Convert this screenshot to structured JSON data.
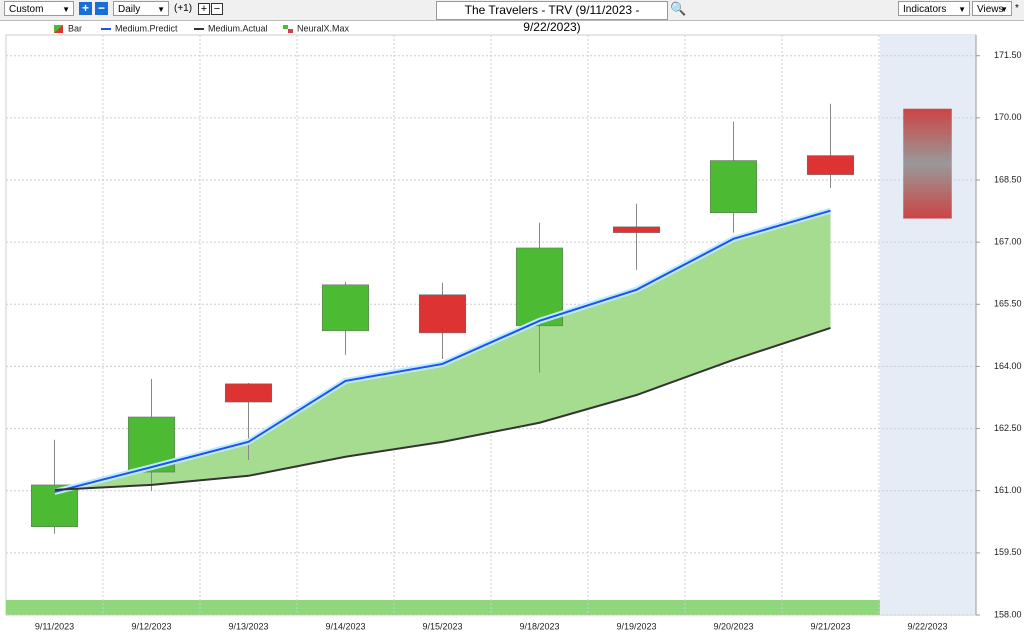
{
  "toolbar": {
    "period": "Custom",
    "interval": "Daily",
    "offset": "(+1)",
    "indicators": "Indicators",
    "views": "Views",
    "star": "*"
  },
  "chart_data": {
    "type": "candlestick",
    "title": "The Travelers - TRV (9/11/2023 - 9/22/2023)",
    "categories": [
      "9/11/2023",
      "9/12/2023",
      "9/13/2023",
      "9/14/2023",
      "9/15/2023",
      "9/18/2023",
      "9/19/2023",
      "9/20/2023",
      "9/21/2023",
      "9/22/2023"
    ],
    "series": [
      {
        "name": "Bar",
        "type": "candlestick",
        "up_color": "#4cbb33",
        "down_color": "#dd3333",
        "open": [
          160.13,
          161.45,
          163.58,
          164.86,
          165.73,
          164.98,
          167.37,
          167.71,
          169.09,
          null
        ],
        "high": [
          162.23,
          163.7,
          163.6,
          166.04,
          166.02,
          167.47,
          167.93,
          169.91,
          170.34,
          null
        ],
        "low": [
          159.96,
          161.0,
          161.74,
          164.28,
          164.18,
          163.85,
          166.33,
          167.23,
          168.31,
          null
        ],
        "close": [
          161.14,
          162.78,
          163.14,
          165.97,
          164.81,
          166.86,
          167.23,
          168.97,
          168.63,
          null
        ]
      },
      {
        "name": "Medium.Predict",
        "type": "line",
        "color": "#1a55ee",
        "values": [
          160.97,
          161.57,
          162.18,
          163.65,
          164.06,
          165.1,
          165.85,
          167.08,
          167.76,
          null
        ]
      },
      {
        "name": "Medium.Actual",
        "type": "line",
        "color": "#333333",
        "values": [
          161.02,
          161.14,
          161.36,
          161.82,
          162.18,
          162.64,
          163.31,
          164.16,
          164.93,
          null
        ]
      },
      {
        "name": "NeuralX.Max",
        "type": "range",
        "color": "#cc4444",
        "high": [
          null,
          null,
          null,
          null,
          null,
          null,
          null,
          null,
          null,
          170.22
        ],
        "low": [
          null,
          null,
          null,
          null,
          null,
          null,
          null,
          null,
          null,
          167.57
        ]
      }
    ],
    "ylim": [
      158,
      172
    ],
    "yticks": [
      {
        "value": 158,
        "label": "158.00"
      },
      {
        "value": 159.5,
        "label": "159.50"
      },
      {
        "value": 161,
        "label": "161.00"
      },
      {
        "value": 162.5,
        "label": "162.50"
      },
      {
        "value": 164,
        "label": "164.00"
      },
      {
        "value": 165.5,
        "label": "165.50"
      },
      {
        "value": 167,
        "label": "167.00"
      },
      {
        "value": 168.5,
        "label": "168.50"
      },
      {
        "value": 170,
        "label": "170.00"
      },
      {
        "value": 171.5,
        "label": "171.50"
      }
    ],
    "grid": true,
    "fill_between": true
  }
}
